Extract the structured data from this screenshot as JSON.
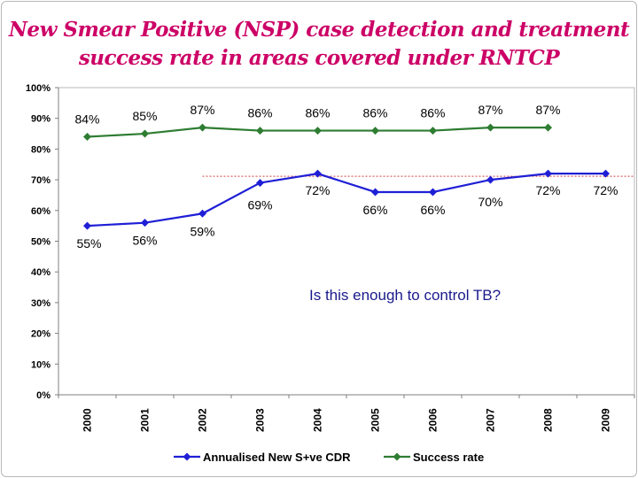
{
  "title_line1": "New Smear Positive (NSP) case detection and treatment",
  "title_line2": "success rate in areas covered under RNTCP",
  "annotation": "Is this enough to control TB?",
  "colors": {
    "title": "#cc0066",
    "cdr": "#1f1fd6",
    "success": "#2e7d32",
    "target_line": "#d04040",
    "annotation": "#1a1a8c"
  },
  "chart_data": {
    "type": "line",
    "categories": [
      "2000",
      "2001",
      "2002",
      "2003",
      "2004",
      "2005",
      "2006",
      "2007",
      "2008",
      "2009"
    ],
    "ylim": [
      0,
      100
    ],
    "yticks": [
      "0%",
      "10%",
      "20%",
      "30%",
      "40%",
      "50%",
      "60%",
      "70%",
      "80%",
      "90%",
      "100%"
    ],
    "series": [
      {
        "name": "Annualised New S+ve CDR",
        "values": [
          55,
          56,
          59,
          69,
          72,
          66,
          66,
          70,
          72,
          72
        ],
        "labels": [
          "55%",
          "56%",
          "59%",
          "69%",
          "72%",
          "66%",
          "66%",
          "70%",
          "72%",
          "72%"
        ]
      },
      {
        "name": "Success rate",
        "values": [
          84,
          85,
          87,
          86,
          86,
          86,
          86,
          87,
          87,
          null
        ],
        "labels": [
          "84%",
          "85%",
          "87%",
          "86%",
          "86%",
          "86%",
          "86%",
          "87%",
          "87%",
          ""
        ]
      }
    ],
    "reference_line": 70,
    "grid": false,
    "legend_position": "bottom"
  }
}
